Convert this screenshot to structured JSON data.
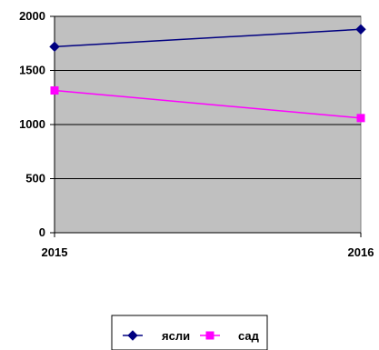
{
  "chart_data": {
    "type": "line",
    "title": "",
    "xlabel": "",
    "ylabel": "",
    "x": [
      "2015",
      "2016"
    ],
    "ylim": [
      0,
      2000
    ],
    "yticks": [
      0,
      500,
      1000,
      1500,
      2000
    ],
    "grid": true,
    "plot_background": "#c0c0c0",
    "legend_position": "bottom",
    "series": [
      {
        "name": "ясли",
        "values": [
          1720,
          1880
        ],
        "color": "#000080",
        "marker": "diamond"
      },
      {
        "name": "сад",
        "values": [
          1315,
          1060
        ],
        "color": "#ff00ff",
        "marker": "square"
      }
    ]
  }
}
